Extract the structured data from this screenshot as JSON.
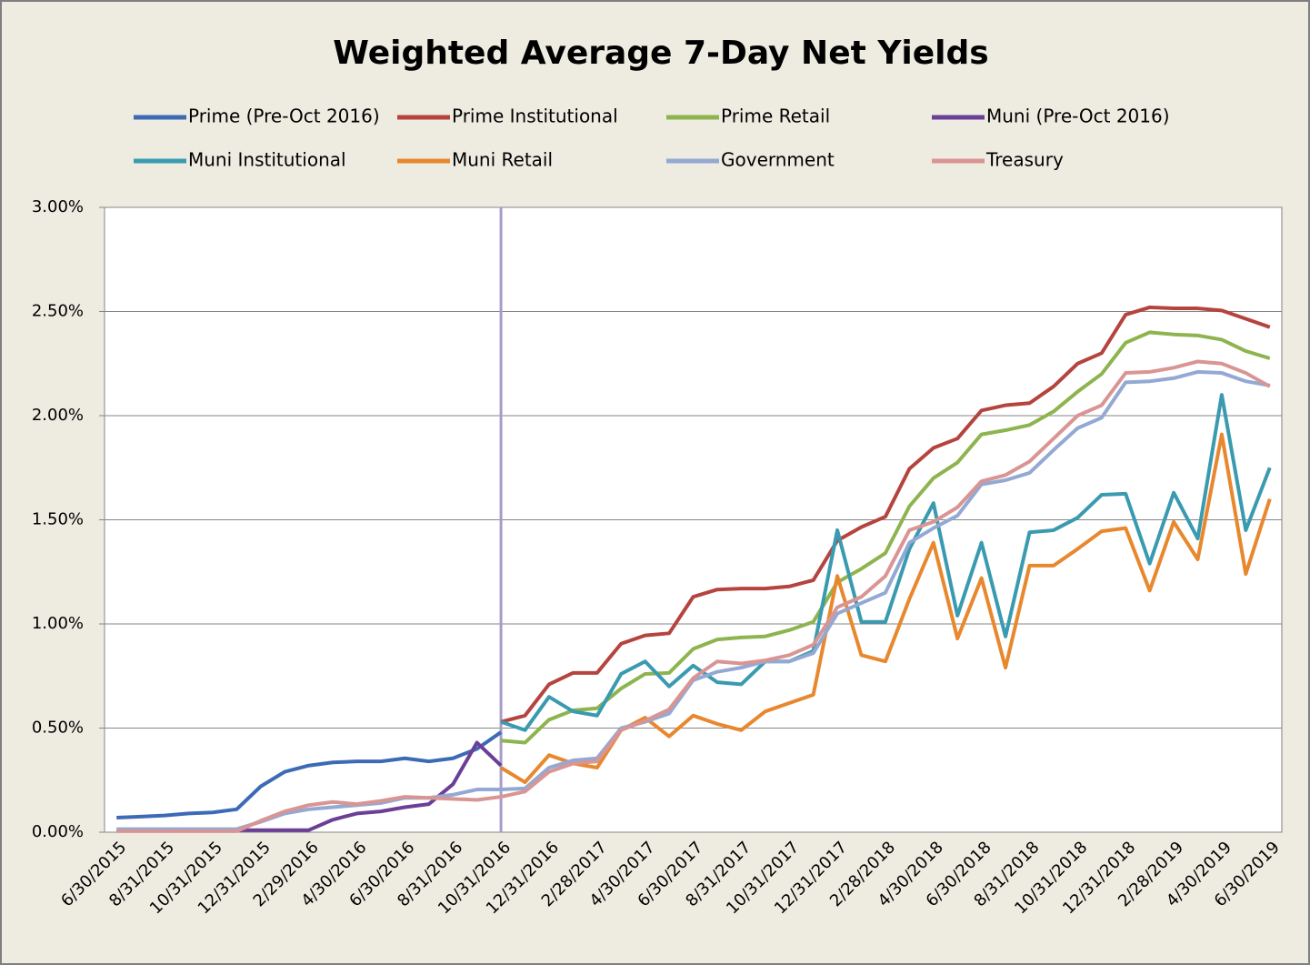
{
  "chart_data": {
    "type": "line",
    "title": "Weighted Average 7-Day Net Yields",
    "categories": [
      "6/30/2015",
      null,
      "8/31/2015",
      null,
      "10/31/2015",
      null,
      "12/31/2015",
      null,
      "2/29/2016",
      null,
      "4/30/2016",
      null,
      "6/30/2016",
      null,
      "8/31/2016",
      null,
      "10/31/2016",
      null,
      "12/31/2016",
      null,
      "2/28/2017",
      null,
      "4/30/2017",
      null,
      "6/30/2017",
      null,
      "8/31/2017",
      null,
      "10/31/2017",
      null,
      "12/31/2017",
      null,
      "2/28/2018",
      null,
      "4/30/2018",
      null,
      "6/30/2018",
      null,
      "8/31/2018",
      null,
      "10/31/2018",
      null,
      "12/31/2018",
      null,
      "2/28/2019",
      null,
      "4/30/2019",
      null,
      "6/30/2019"
    ],
    "series": [
      {
        "name": "Prime (Pre-Oct 2016)",
        "color": "#3d6ab5",
        "values": [
          0.07,
          0.075,
          0.08,
          0.09,
          0.095,
          0.11,
          0.22,
          0.29,
          0.32,
          0.335,
          0.34,
          0.34,
          0.355,
          0.34,
          0.355,
          0.4,
          0.48,
          null,
          null,
          null,
          null,
          null,
          null,
          null,
          null,
          null,
          null,
          null,
          null,
          null,
          null,
          null,
          null,
          null,
          null,
          null,
          null,
          null,
          null,
          null,
          null,
          null,
          null,
          null,
          null,
          null,
          null,
          null,
          null
        ]
      },
      {
        "name": "Prime Institutional",
        "color": "#b5443f",
        "values": [
          null,
          null,
          null,
          null,
          null,
          null,
          null,
          null,
          null,
          null,
          null,
          null,
          null,
          null,
          null,
          null,
          0.53,
          0.56,
          0.71,
          0.765,
          0.765,
          0.905,
          0.945,
          0.955,
          1.13,
          1.165,
          1.17,
          1.17,
          1.18,
          1.21,
          1.4,
          1.465,
          1.515,
          1.745,
          1.845,
          1.89,
          2.025,
          2.05,
          2.06,
          2.14,
          2.25,
          2.3,
          2.485,
          2.52,
          2.515,
          2.515,
          2.505,
          2.465,
          2.425
        ]
      },
      {
        "name": "Prime Retail",
        "color": "#8db44e",
        "values": [
          null,
          null,
          null,
          null,
          null,
          null,
          null,
          null,
          null,
          null,
          null,
          null,
          null,
          null,
          null,
          null,
          0.44,
          0.43,
          0.54,
          0.585,
          0.595,
          0.69,
          0.76,
          0.765,
          0.88,
          0.925,
          0.935,
          0.94,
          0.97,
          1.01,
          1.2,
          1.265,
          1.34,
          1.565,
          1.7,
          1.775,
          1.91,
          1.93,
          1.955,
          2.02,
          2.115,
          2.2,
          2.35,
          2.4,
          2.39,
          2.385,
          2.365,
          2.31,
          2.275
        ]
      },
      {
        "name": "Muni (Pre-Oct 2016)",
        "color": "#6b3f96",
        "values": [
          0.01,
          0.01,
          0.01,
          0.01,
          0.01,
          0.01,
          0.01,
          0.01,
          0.01,
          0.06,
          0.09,
          0.1,
          0.12,
          0.135,
          0.23,
          0.43,
          0.32,
          null,
          null,
          null,
          null,
          null,
          null,
          null,
          null,
          null,
          null,
          null,
          null,
          null,
          null,
          null,
          null,
          null,
          null,
          null,
          null,
          null,
          null,
          null,
          null,
          null,
          null,
          null,
          null,
          null,
          null,
          null,
          null
        ]
      },
      {
        "name": "Muni Institutional",
        "color": "#3a9ab0",
        "values": [
          null,
          null,
          null,
          null,
          null,
          null,
          null,
          null,
          null,
          null,
          null,
          null,
          null,
          null,
          null,
          null,
          0.53,
          0.49,
          0.65,
          0.58,
          0.56,
          0.76,
          0.82,
          0.7,
          0.8,
          0.72,
          0.71,
          0.82,
          0.82,
          0.87,
          1.45,
          1.01,
          1.01,
          1.36,
          1.58,
          1.04,
          1.39,
          0.94,
          1.44,
          1.45,
          1.51,
          1.62,
          1.625,
          1.29,
          1.63,
          1.41,
          2.1,
          1.45,
          1.75
        ]
      },
      {
        "name": "Muni Retail",
        "color": "#e8882e",
        "values": [
          null,
          null,
          null,
          null,
          null,
          null,
          null,
          null,
          null,
          null,
          null,
          null,
          null,
          null,
          null,
          null,
          0.31,
          0.24,
          0.37,
          0.33,
          0.31,
          0.49,
          0.55,
          0.46,
          0.56,
          0.52,
          0.49,
          0.58,
          0.62,
          0.66,
          1.23,
          0.85,
          0.82,
          1.12,
          1.39,
          0.93,
          1.22,
          0.79,
          1.28,
          1.28,
          1.36,
          1.445,
          1.46,
          1.16,
          1.49,
          1.31,
          1.91,
          1.24,
          1.6
        ]
      },
      {
        "name": "Government",
        "color": "#93a9d4",
        "values": [
          0.015,
          0.015,
          0.015,
          0.015,
          0.015,
          0.015,
          0.05,
          0.09,
          0.11,
          0.12,
          0.13,
          0.14,
          0.165,
          0.165,
          0.18,
          0.205,
          0.205,
          0.21,
          0.31,
          0.345,
          0.355,
          0.5,
          0.53,
          0.57,
          0.73,
          0.77,
          0.79,
          0.82,
          0.82,
          0.86,
          1.05,
          1.1,
          1.15,
          1.39,
          1.46,
          1.52,
          1.67,
          1.69,
          1.725,
          1.835,
          1.94,
          1.99,
          2.16,
          2.165,
          2.18,
          2.21,
          2.205,
          2.165,
          2.145
        ]
      },
      {
        "name": "Treasury",
        "color": "#d99593",
        "values": [
          0.005,
          0.005,
          0.005,
          0.005,
          0.005,
          0.005,
          0.055,
          0.1,
          0.13,
          0.145,
          0.135,
          0.15,
          0.17,
          0.165,
          0.16,
          0.155,
          0.17,
          0.195,
          0.29,
          0.33,
          0.34,
          0.49,
          0.535,
          0.59,
          0.74,
          0.82,
          0.81,
          0.825,
          0.85,
          0.9,
          1.08,
          1.13,
          1.23,
          1.45,
          1.49,
          1.56,
          1.685,
          1.715,
          1.78,
          1.89,
          2.0,
          2.05,
          2.205,
          2.21,
          2.23,
          2.26,
          2.25,
          2.205,
          2.14
        ]
      }
    ],
    "ylim": [
      0,
      3
    ],
    "yticks": [
      {
        "value": 0,
        "label": "0.00%"
      },
      {
        "value": 0.5,
        "label": "0.50%"
      },
      {
        "value": 1,
        "label": "1.00%"
      },
      {
        "value": 1.5,
        "label": "1.50%"
      },
      {
        "value": 2,
        "label": "2.00%"
      },
      {
        "value": 2.5,
        "label": "2.50%"
      },
      {
        "value": 3,
        "label": "3.00%"
      }
    ],
    "grid": true,
    "legend": "top",
    "divider_color": "#a99bc8"
  }
}
